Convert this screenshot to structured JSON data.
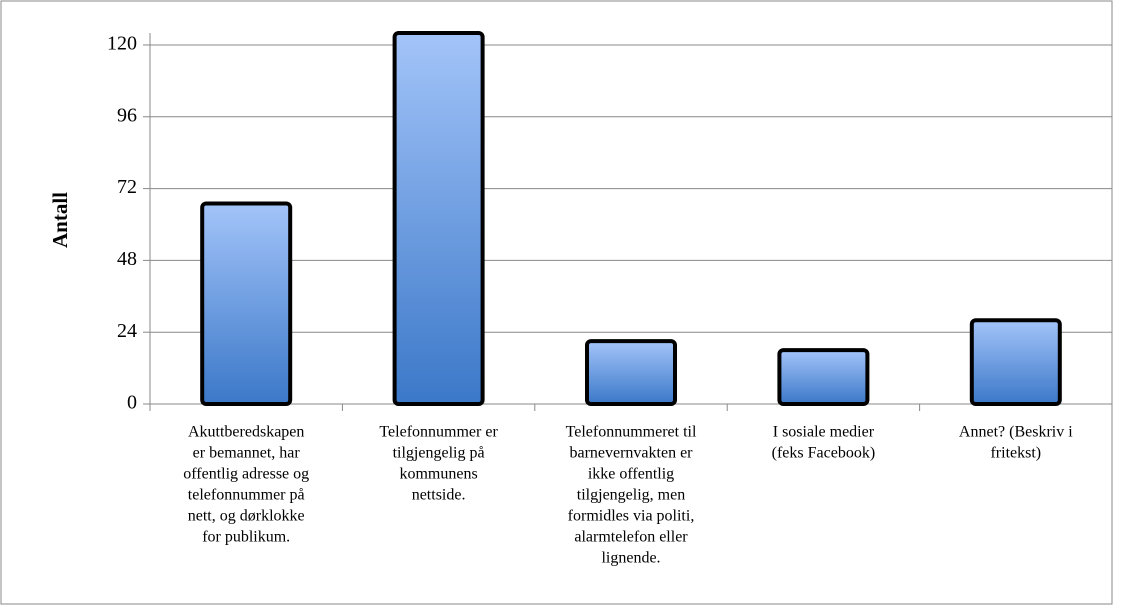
{
  "chart_data": {
    "type": "bar",
    "y_label": "Antall",
    "categories": [
      [
        "Akuttberedskapen",
        "er bemannet, har",
        "offentlig adresse og",
        "telefonnummer på",
        "nett, og dørklokke",
        "for publikum."
      ],
      [
        "Telefonnummer er",
        "tilgjengelig på",
        "kommunens",
        "nettside."
      ],
      [
        "Telefonnummeret til",
        "barnevernvakten er",
        "ikke offentlig",
        "tilgjengelig, men",
        "formidles via politi,",
        "alarmtelefon eller",
        "lignende."
      ],
      [
        "I sosiale medier",
        "(feks Facebook)"
      ],
      [
        "Annet? (Beskriv i",
        "fritekst)"
      ]
    ],
    "values": [
      67,
      124,
      21,
      18,
      28
    ],
    "color_top": "#a3c4f9",
    "color_bottom": "#3b78c8",
    "ylim": [
      0,
      124
    ],
    "yticks": [
      0,
      24,
      48,
      72,
      96,
      120
    ],
    "grid": true
  }
}
